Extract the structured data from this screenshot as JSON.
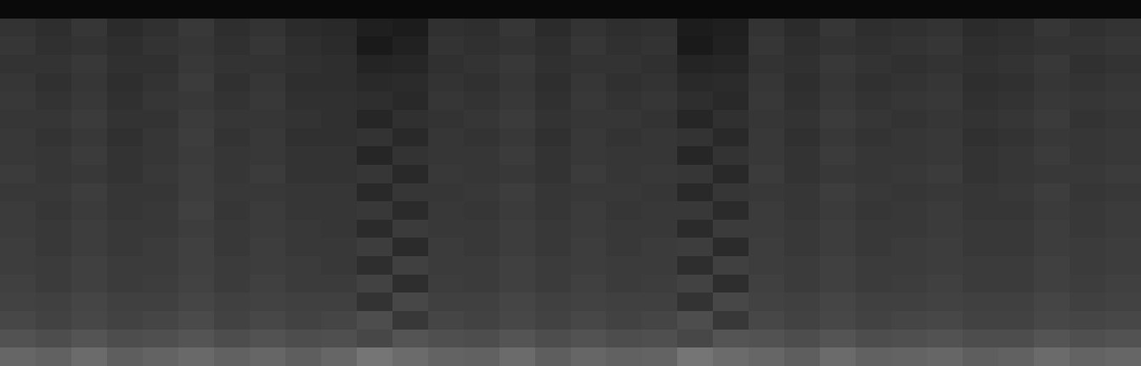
{
  "chart_data": {
    "type": "heatmap",
    "tick_labels": false,
    "zlim": [
      0,
      1
    ],
    "cells": [
      [
        0.04,
        0.04,
        0.04,
        0.04,
        0.04,
        0.04,
        0.04,
        0.04,
        0.04,
        0.04,
        0.04,
        0.04,
        0.04,
        0.04,
        0.04,
        0.04,
        0.04,
        0.04,
        0.04,
        0.04,
        0.04,
        0.04,
        0.04,
        0.04,
        0.04,
        0.04,
        0.04,
        0.04,
        0.04,
        0.04,
        0.04,
        0.04
      ],
      [
        0.2,
        0.18,
        0.21,
        0.17,
        0.19,
        0.22,
        0.18,
        0.2,
        0.17,
        0.16,
        0.12,
        0.11,
        0.19,
        0.18,
        0.21,
        0.17,
        0.2,
        0.18,
        0.19,
        0.11,
        0.12,
        0.2,
        0.17,
        0.21,
        0.18,
        0.19,
        0.2,
        0.17,
        0.18,
        0.21,
        0.19,
        0.2
      ],
      [
        0.21,
        0.19,
        0.2,
        0.18,
        0.2,
        0.21,
        0.19,
        0.21,
        0.18,
        0.17,
        0.1,
        0.13,
        0.2,
        0.19,
        0.2,
        0.18,
        0.21,
        0.19,
        0.2,
        0.1,
        0.13,
        0.21,
        0.18,
        0.2,
        0.19,
        0.2,
        0.21,
        0.18,
        0.19,
        0.2,
        0.2,
        0.21
      ],
      [
        0.2,
        0.2,
        0.22,
        0.19,
        0.19,
        0.22,
        0.2,
        0.2,
        0.19,
        0.18,
        0.14,
        0.15,
        0.19,
        0.2,
        0.22,
        0.19,
        0.2,
        0.2,
        0.19,
        0.14,
        0.15,
        0.2,
        0.19,
        0.22,
        0.2,
        0.19,
        0.2,
        0.19,
        0.2,
        0.22,
        0.19,
        0.2
      ],
      [
        0.21,
        0.19,
        0.21,
        0.18,
        0.2,
        0.23,
        0.19,
        0.21,
        0.18,
        0.18,
        0.16,
        0.17,
        0.2,
        0.19,
        0.21,
        0.18,
        0.21,
        0.19,
        0.2,
        0.16,
        0.17,
        0.21,
        0.18,
        0.21,
        0.19,
        0.2,
        0.21,
        0.18,
        0.19,
        0.21,
        0.2,
        0.21
      ],
      [
        0.22,
        0.2,
        0.22,
        0.19,
        0.21,
        0.22,
        0.2,
        0.22,
        0.19,
        0.19,
        0.18,
        0.16,
        0.21,
        0.2,
        0.22,
        0.19,
        0.22,
        0.2,
        0.21,
        0.18,
        0.16,
        0.22,
        0.19,
        0.22,
        0.2,
        0.21,
        0.22,
        0.19,
        0.2,
        0.22,
        0.21,
        0.22
      ],
      [
        0.21,
        0.21,
        0.23,
        0.2,
        0.2,
        0.23,
        0.21,
        0.21,
        0.2,
        0.19,
        0.15,
        0.19,
        0.2,
        0.21,
        0.23,
        0.2,
        0.21,
        0.21,
        0.2,
        0.15,
        0.19,
        0.21,
        0.2,
        0.23,
        0.21,
        0.2,
        0.21,
        0.2,
        0.21,
        0.23,
        0.2,
        0.21
      ],
      [
        0.22,
        0.2,
        0.22,
        0.19,
        0.21,
        0.24,
        0.2,
        0.22,
        0.19,
        0.19,
        0.2,
        0.16,
        0.21,
        0.2,
        0.22,
        0.19,
        0.22,
        0.2,
        0.21,
        0.2,
        0.16,
        0.22,
        0.19,
        0.22,
        0.2,
        0.21,
        0.22,
        0.19,
        0.2,
        0.22,
        0.21,
        0.22
      ],
      [
        0.22,
        0.21,
        0.23,
        0.2,
        0.21,
        0.23,
        0.21,
        0.22,
        0.2,
        0.2,
        0.15,
        0.2,
        0.21,
        0.21,
        0.23,
        0.2,
        0.22,
        0.21,
        0.21,
        0.15,
        0.2,
        0.22,
        0.2,
        0.23,
        0.21,
        0.21,
        0.22,
        0.2,
        0.21,
        0.23,
        0.21,
        0.22
      ],
      [
        0.23,
        0.21,
        0.22,
        0.2,
        0.22,
        0.24,
        0.21,
        0.23,
        0.2,
        0.2,
        0.21,
        0.16,
        0.22,
        0.21,
        0.22,
        0.2,
        0.23,
        0.21,
        0.22,
        0.21,
        0.16,
        0.23,
        0.2,
        0.22,
        0.21,
        0.22,
        0.23,
        0.2,
        0.21,
        0.22,
        0.22,
        0.23
      ],
      [
        0.22,
        0.22,
        0.24,
        0.21,
        0.21,
        0.24,
        0.22,
        0.22,
        0.21,
        0.21,
        0.16,
        0.21,
        0.21,
        0.22,
        0.24,
        0.21,
        0.22,
        0.22,
        0.21,
        0.16,
        0.21,
        0.22,
        0.21,
        0.24,
        0.22,
        0.21,
        0.22,
        0.21,
        0.22,
        0.24,
        0.21,
        0.22
      ],
      [
        0.23,
        0.21,
        0.23,
        0.21,
        0.22,
        0.25,
        0.21,
        0.23,
        0.21,
        0.21,
        0.22,
        0.17,
        0.22,
        0.21,
        0.23,
        0.21,
        0.23,
        0.21,
        0.22,
        0.22,
        0.17,
        0.23,
        0.21,
        0.23,
        0.21,
        0.22,
        0.23,
        0.21,
        0.21,
        0.23,
        0.22,
        0.23
      ],
      [
        0.23,
        0.22,
        0.24,
        0.22,
        0.22,
        0.24,
        0.22,
        0.23,
        0.22,
        0.21,
        0.17,
        0.23,
        0.22,
        0.22,
        0.24,
        0.22,
        0.23,
        0.22,
        0.22,
        0.17,
        0.23,
        0.23,
        0.22,
        0.24,
        0.22,
        0.22,
        0.23,
        0.22,
        0.22,
        0.24,
        0.22,
        0.23
      ],
      [
        0.24,
        0.22,
        0.24,
        0.22,
        0.23,
        0.25,
        0.22,
        0.24,
        0.22,
        0.22,
        0.24,
        0.17,
        0.23,
        0.22,
        0.24,
        0.22,
        0.24,
        0.22,
        0.23,
        0.24,
        0.17,
        0.24,
        0.22,
        0.24,
        0.22,
        0.23,
        0.24,
        0.22,
        0.22,
        0.24,
        0.23,
        0.24
      ],
      [
        0.24,
        0.23,
        0.25,
        0.23,
        0.23,
        0.25,
        0.23,
        0.24,
        0.23,
        0.22,
        0.18,
        0.25,
        0.23,
        0.23,
        0.25,
        0.23,
        0.24,
        0.23,
        0.23,
        0.18,
        0.25,
        0.24,
        0.23,
        0.25,
        0.23,
        0.23,
        0.24,
        0.23,
        0.23,
        0.25,
        0.23,
        0.24
      ],
      [
        0.25,
        0.23,
        0.25,
        0.23,
        0.24,
        0.26,
        0.23,
        0.25,
        0.23,
        0.23,
        0.26,
        0.18,
        0.24,
        0.23,
        0.25,
        0.23,
        0.25,
        0.23,
        0.24,
        0.26,
        0.18,
        0.25,
        0.23,
        0.25,
        0.23,
        0.24,
        0.25,
        0.23,
        0.23,
        0.25,
        0.24,
        0.25
      ],
      [
        0.26,
        0.25,
        0.27,
        0.25,
        0.25,
        0.27,
        0.25,
        0.26,
        0.25,
        0.25,
        0.2,
        0.28,
        0.25,
        0.25,
        0.27,
        0.25,
        0.26,
        0.25,
        0.25,
        0.2,
        0.28,
        0.26,
        0.25,
        0.27,
        0.25,
        0.25,
        0.26,
        0.25,
        0.25,
        0.27,
        0.25,
        0.26
      ],
      [
        0.28,
        0.26,
        0.28,
        0.26,
        0.27,
        0.29,
        0.26,
        0.28,
        0.26,
        0.27,
        0.3,
        0.22,
        0.27,
        0.26,
        0.28,
        0.26,
        0.28,
        0.26,
        0.27,
        0.3,
        0.22,
        0.28,
        0.26,
        0.28,
        0.26,
        0.27,
        0.28,
        0.26,
        0.26,
        0.28,
        0.27,
        0.28
      ],
      [
        0.32,
        0.3,
        0.33,
        0.3,
        0.31,
        0.33,
        0.3,
        0.32,
        0.3,
        0.31,
        0.28,
        0.33,
        0.31,
        0.3,
        0.33,
        0.3,
        0.32,
        0.3,
        0.31,
        0.28,
        0.33,
        0.32,
        0.3,
        0.33,
        0.3,
        0.31,
        0.32,
        0.3,
        0.3,
        0.33,
        0.31,
        0.32
      ],
      [
        0.4,
        0.38,
        0.42,
        0.37,
        0.39,
        0.41,
        0.38,
        0.4,
        0.37,
        0.4,
        0.46,
        0.42,
        0.39,
        0.38,
        0.42,
        0.37,
        0.4,
        0.38,
        0.39,
        0.46,
        0.42,
        0.4,
        0.37,
        0.42,
        0.38,
        0.39,
        0.4,
        0.37,
        0.38,
        0.42,
        0.39,
        0.4
      ]
    ]
  }
}
